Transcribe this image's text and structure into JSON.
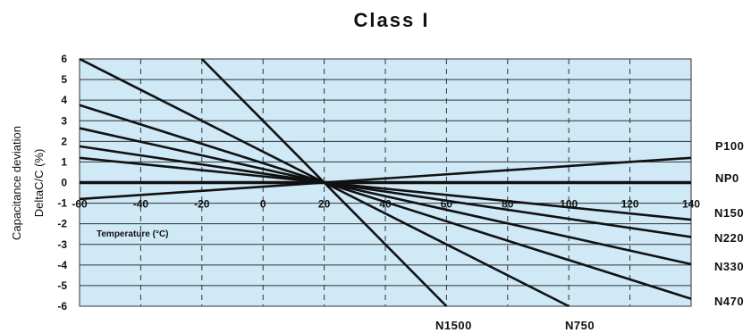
{
  "chart_data": {
    "type": "line",
    "title": "Class I",
    "ylabel": [
      "Capacitance deviation",
      "DeltaC/C (%)"
    ],
    "xlabel": "Temperature (°C)",
    "xlim": [
      -60,
      140
    ],
    "ylim": [
      -6,
      6
    ],
    "x_ticks": [
      -60,
      -40,
      -20,
      0,
      20,
      40,
      60,
      80,
      100,
      120,
      140
    ],
    "y_ticks": [
      6,
      5,
      4,
      3,
      2,
      1,
      0,
      -1,
      -2,
      -3,
      -4,
      -5,
      -6
    ],
    "x_tick_labels": [
      "-60",
      "-40",
      "-20",
      "0",
      "20",
      "40",
      "60",
      "80",
      "100",
      "120",
      "140"
    ],
    "y_tick_labels": [
      "6",
      "5",
      "4",
      "3",
      "2",
      "1",
      "0",
      "-1",
      "-2",
      "-3",
      "-4",
      "-5",
      "-6"
    ],
    "grid": {
      "horizontal": "solid",
      "vertical": "dashed"
    },
    "background_color": "#cfe9f7",
    "line_color": "#111111",
    "series": [
      {
        "name": "P100",
        "x": [
          -60,
          140
        ],
        "y": [
          -0.8,
          1.2
        ]
      },
      {
        "name": "NP0",
        "x": [
          -60,
          140
        ],
        "y": [
          0,
          0
        ]
      },
      {
        "name": "N150",
        "x": [
          -60,
          140
        ],
        "y": [
          1.2,
          -1.8
        ]
      },
      {
        "name": "N220",
        "x": [
          -60,
          140
        ],
        "y": [
          1.76,
          -2.64
        ]
      },
      {
        "name": "N330",
        "x": [
          -60,
          140
        ],
        "y": [
          2.64,
          -3.96
        ]
      },
      {
        "name": "N470",
        "x": [
          -60,
          140
        ],
        "y": [
          3.76,
          -5.64
        ]
      },
      {
        "name": "N750",
        "x": [
          -60,
          100
        ],
        "y": [
          6,
          -6
        ]
      },
      {
        "name": "N1500",
        "x": [
          -20,
          60
        ],
        "y": [
          6,
          -6
        ]
      }
    ],
    "series_labels": [
      {
        "name": "P100",
        "text": "P100"
      },
      {
        "name": "NP0",
        "text": "NP0"
      },
      {
        "name": "N150",
        "text": "N150"
      },
      {
        "name": "N220",
        "text": "N220"
      },
      {
        "name": "N330",
        "text": "N330"
      },
      {
        "name": "N470",
        "text": "N470"
      },
      {
        "name": "N750",
        "text": "N750"
      },
      {
        "name": "N1500",
        "text": "N1500"
      }
    ]
  }
}
